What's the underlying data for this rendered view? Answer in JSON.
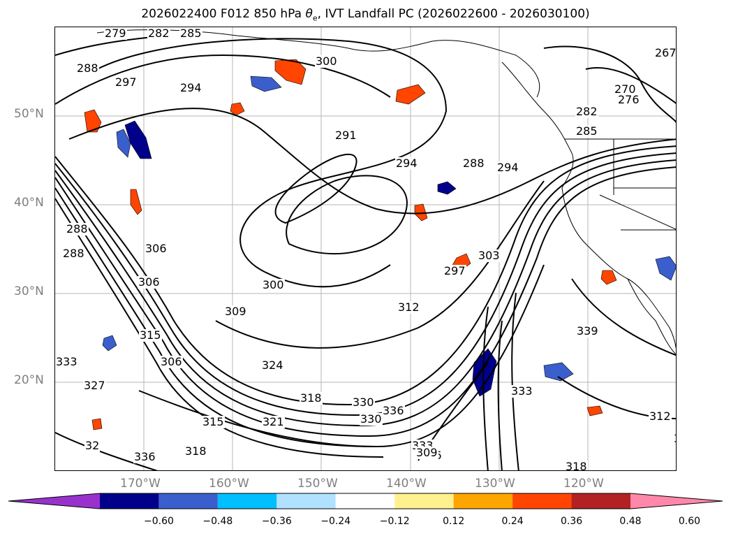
{
  "title": "2026022400 F012 850 hPa θe, IVT Landfall PC (2026022600 - 2026030100)",
  "title_parts": {
    "prefix": "2026022400 F012 850 hPa ",
    "theta": "θ",
    "sub": "e",
    "suffix": ", IVT Landfall PC (2026022600 - 2026030100)"
  },
  "map": {
    "projection": "PlateCarree",
    "lon_range": [
      -180,
      -110
    ],
    "lat_range": [
      10,
      60
    ],
    "gridlines": true,
    "lat_labels": [
      {
        "label": "50°N"
      },
      {
        "label": "40°N"
      },
      {
        "label": "30°N"
      },
      {
        "label": "20°N"
      }
    ],
    "lon_labels": [
      {
        "label": "170°W"
      },
      {
        "label": "160°W"
      },
      {
        "label": "150°W"
      },
      {
        "label": "140°W"
      },
      {
        "label": "130°W"
      },
      {
        "label": "120°W"
      }
    ],
    "contour_labels": [
      "279",
      "282",
      "285",
      "288",
      "297",
      "294",
      "300",
      "291",
      "294",
      "288",
      "294",
      "267",
      "270",
      "276",
      "282",
      "285",
      "288",
      "288",
      "306",
      "306",
      "300",
      "309",
      "297",
      "303",
      "312",
      "315",
      "306",
      "324",
      "327",
      "318",
      "330",
      "315",
      "321",
      "318",
      "330",
      "336",
      "333",
      "336",
      "336",
      "333",
      "339",
      "309",
      "318",
      "312",
      "330",
      "333",
      "32"
    ]
  },
  "colorbar": {
    "ticks": [
      "−0.60",
      "−0.48",
      "−0.36",
      "−0.24",
      "−0.12",
      "0.12",
      "0.24",
      "0.36",
      "0.48",
      "0.60"
    ],
    "colors": [
      "#9932cc",
      "#00008b",
      "#3a5fcd",
      "#00bfff",
      "#b0e2ff",
      "#ffffff",
      "#fff18e",
      "#ffa500",
      "#ff4500",
      "#b22222",
      "#ff88aa"
    ]
  }
}
